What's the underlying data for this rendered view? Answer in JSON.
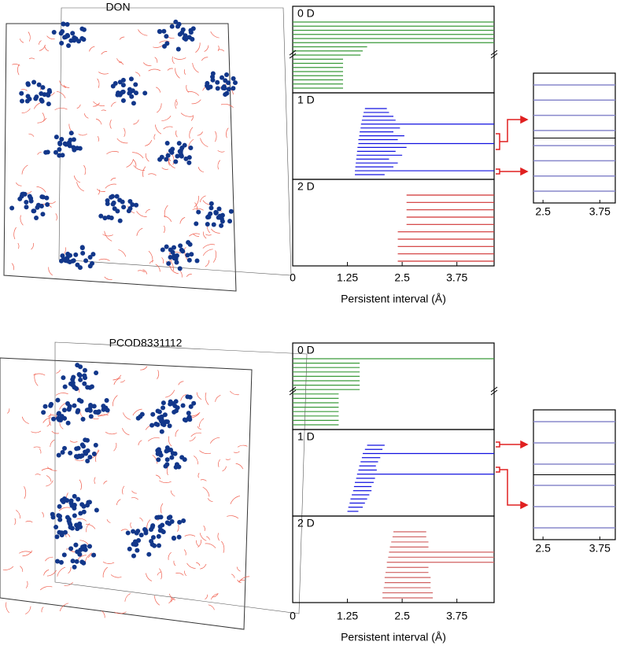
{
  "figures": [
    {
      "title": "DON",
      "barcode": {
        "xlabel": "Persistent interval (Å)",
        "xlim": [
          0,
          4.6
        ],
        "xticks": [
          0,
          1.25,
          2.5,
          3.75
        ],
        "panels": [
          {
            "label": "0 D",
            "color": "#3a9a3a",
            "intervals": [
              [
                0,
                4.6
              ],
              [
                0,
                4.6
              ],
              [
                0,
                4.6
              ],
              [
                0,
                4.6
              ],
              [
                0,
                4.6
              ],
              [
                0,
                4.6
              ],
              [
                0,
                1.7
              ],
              [
                0,
                1.6
              ],
              [
                0,
                1.55
              ],
              [
                0,
                1.15
              ],
              [
                0,
                1.15
              ],
              [
                0,
                1.15
              ],
              [
                0,
                1.15
              ],
              [
                0,
                1.15
              ],
              [
                0,
                1.15
              ],
              [
                0,
                1.15
              ],
              [
                0,
                1.15
              ]
            ]
          },
          {
            "label": "1 D",
            "color": "#1010e0",
            "intervals": [
              [
                1.65,
                2.15
              ],
              [
                1.62,
                2.2
              ],
              [
                1.6,
                2.3
              ],
              [
                1.58,
                2.35
              ],
              [
                1.56,
                4.6
              ],
              [
                1.55,
                2.45
              ],
              [
                1.53,
                2.3
              ],
              [
                1.52,
                2.55
              ],
              [
                1.5,
                2.4
              ],
              [
                1.5,
                4.6
              ],
              [
                1.48,
                2.6
              ],
              [
                1.47,
                2.35
              ],
              [
                1.46,
                2.5
              ],
              [
                1.45,
                2.2
              ],
              [
                1.44,
                2.4
              ],
              [
                1.43,
                2.3
              ],
              [
                1.42,
                4.6
              ],
              [
                1.42,
                2.1
              ]
            ]
          },
          {
            "label": "2 D",
            "color": "#d03030",
            "intervals": [
              [
                2.6,
                4.6
              ],
              [
                2.6,
                4.6
              ],
              [
                2.6,
                4.6
              ],
              [
                2.6,
                4.6
              ],
              [
                2.6,
                4.6
              ],
              [
                2.4,
                4.6
              ],
              [
                2.4,
                4.6
              ],
              [
                2.4,
                4.6
              ],
              [
                2.4,
                4.6
              ],
              [
                2.4,
                4.6
              ]
            ]
          }
        ]
      },
      "inset": {
        "xlim": [
          2.29,
          4.09
        ],
        "xticks": [
          2.5,
          3.75
        ],
        "color": "#8888cc",
        "intervals": [
          [
            2.29,
            4.09
          ],
          [
            2.29,
            4.09
          ],
          [
            2.29,
            4.09
          ],
          [
            2.29,
            4.09
          ],
          [
            2.29,
            4.09
          ],
          [
            2.29,
            4.09
          ],
          [
            2.29,
            4.09
          ],
          [
            2.29,
            4.09
          ]
        ]
      }
    },
    {
      "title": "PCOD8331112",
      "barcode": {
        "xlabel": "Persistent interval (Å)",
        "xlim": [
          0,
          4.6
        ],
        "xticks": [
          0,
          1.25,
          2.5,
          3.75
        ],
        "panels": [
          {
            "label": "0 D",
            "color": "#3a9a3a",
            "intervals": [
              [
                0,
                4.6
              ],
              [
                0,
                1.53
              ],
              [
                0,
                1.53
              ],
              [
                0,
                1.53
              ],
              [
                0,
                1.53
              ],
              [
                0,
                1.53
              ],
              [
                0,
                1.53
              ],
              [
                0,
                1.53
              ],
              [
                0,
                1.05
              ],
              [
                0,
                1.05
              ],
              [
                0,
                1.05
              ],
              [
                0,
                1.05
              ],
              [
                0,
                1.05
              ],
              [
                0,
                1.05
              ],
              [
                0,
                1.05
              ],
              [
                0,
                1.05
              ]
            ]
          },
          {
            "label": "1 D",
            "color": "#1010e0",
            "intervals": [
              [
                1.7,
                2.1
              ],
              [
                1.65,
                2.05
              ],
              [
                1.6,
                4.6
              ],
              [
                1.58,
                2.0
              ],
              [
                1.55,
                1.95
              ],
              [
                1.52,
                1.9
              ],
              [
                1.5,
                1.92
              ],
              [
                1.47,
                4.6
              ],
              [
                1.45,
                1.88
              ],
              [
                1.42,
                1.85
              ],
              [
                1.4,
                1.8
              ],
              [
                1.38,
                1.8
              ],
              [
                1.35,
                1.75
              ],
              [
                1.32,
                1.7
              ],
              [
                1.3,
                1.65
              ],
              [
                1.27,
                1.6
              ],
              [
                1.25,
                1.5
              ]
            ]
          },
          {
            "label": "2 D",
            "color": "#d06060",
            "intervals": [
              [
                2.3,
                3.05
              ],
              [
                2.28,
                3.05
              ],
              [
                2.25,
                3.1
              ],
              [
                2.22,
                3.1
              ],
              [
                2.2,
                4.6
              ],
              [
                2.18,
                4.6
              ],
              [
                2.15,
                4.6
              ],
              [
                2.15,
                3.1
              ],
              [
                2.12,
                3.1
              ],
              [
                2.1,
                3.15
              ],
              [
                2.1,
                3.15
              ],
              [
                2.08,
                3.15
              ],
              [
                2.05,
                3.2
              ],
              [
                2.05,
                3.2
              ]
            ]
          }
        ]
      },
      "inset": {
        "xlim": [
          2.29,
          4.09
        ],
        "xticks": [
          2.5,
          3.75
        ],
        "color": "#8888cc",
        "intervals": [
          [
            2.29,
            4.09
          ],
          [
            2.29,
            4.09
          ],
          [
            2.29,
            4.09
          ],
          [
            2.29,
            4.09
          ],
          [
            2.29,
            4.09
          ],
          [
            2.29,
            4.09
          ]
        ]
      }
    }
  ]
}
